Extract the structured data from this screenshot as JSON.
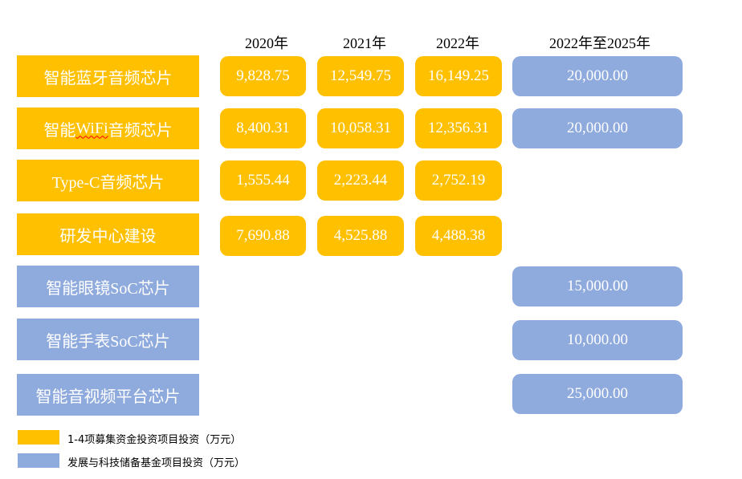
{
  "years": [
    "2020年",
    "2021年",
    "2022年",
    "2022年至2025年"
  ],
  "rows": [
    {
      "label": "智能蓝牙音频芯片",
      "y2020": "9,828.75",
      "y2021": "12,549.75",
      "y2022": "16,149.25",
      "y2022_2025": "20,000.00"
    },
    {
      "label_pre": "智能",
      "label_mid": "WiFi",
      "label_post": "音频芯片",
      "y2020": "8,400.31",
      "y2021": "10,058.31",
      "y2022": "12,356.31",
      "y2022_2025": "20,000.00"
    },
    {
      "label": "Type-C音频芯片",
      "y2020": "1,555.44",
      "y2021": "2,223.44",
      "y2022": "2,752.19"
    },
    {
      "label": "研发中心建设",
      "y2020": "7,690.88",
      "y2021": "4,525.88",
      "y2022": "4,488.38"
    },
    {
      "label": "智能眼镜SoC芯片",
      "y2022_2025": "15,000.00"
    },
    {
      "label": "智能手表SoC芯片",
      "y2022_2025": "10,000.00"
    },
    {
      "label": "智能音视频平台芯片",
      "y2022_2025": "25,000.00"
    }
  ],
  "legend": [
    {
      "label": "1-4项募集资金投资项目投资（万元）",
      "color": "#ffc000"
    },
    {
      "label": "发展与科技储备基金项目投资（万元）",
      "color": "#8faadc"
    }
  ],
  "colors": {
    "yellow": "#ffc000",
    "blue": "#8faadc"
  }
}
